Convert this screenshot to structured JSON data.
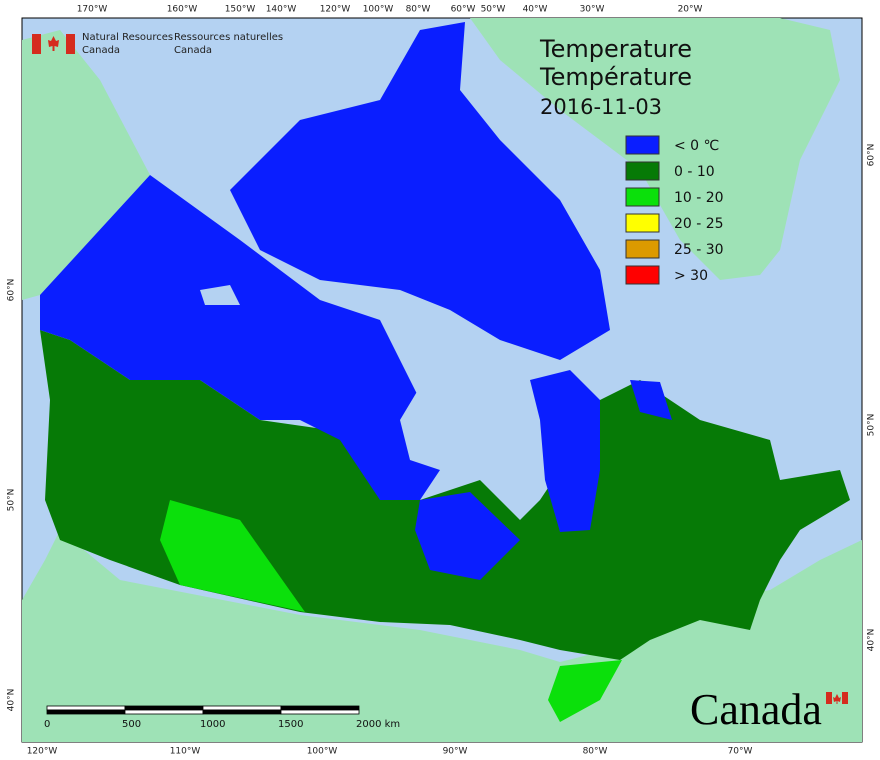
{
  "header": {
    "title_en": "Temperature",
    "title_fr": "Température",
    "date": "2016-11-03"
  },
  "legend": [
    {
      "label": "< 0 ℃",
      "color": "#0a1eff"
    },
    {
      "label": "0 - 10",
      "color": "#067a06"
    },
    {
      "label": "10 - 20",
      "color": "#0be00b"
    },
    {
      "label": "20 - 25",
      "color": "#ffff00"
    },
    {
      "label": "25 - 30",
      "color": "#dc9a00"
    },
    {
      "label": "> 30",
      "color": "#ff0000"
    }
  ],
  "signature": {
    "en": [
      "Natural Resources",
      "Canada"
    ],
    "fr": [
      "Ressources naturelles",
      "Canada"
    ]
  },
  "wordmark": "Canada",
  "graticule": {
    "top": [
      "170°W",
      "160°W",
      "150°W",
      "140°W",
      "120°W",
      "100°W",
      "80°W",
      "60°W",
      "50°W",
      "40°W",
      "30°W",
      "20°W"
    ],
    "bottom": [
      "120°W",
      "110°W",
      "100°W",
      "90°W",
      "80°W",
      "70°W"
    ],
    "left": [
      "60°N",
      "50°N",
      "40°N"
    ],
    "right": [
      "60°N",
      "50°N",
      "40°N"
    ]
  },
  "scale_bar": [
    "0",
    "500",
    "1000",
    "1500",
    "2000 km"
  ]
}
